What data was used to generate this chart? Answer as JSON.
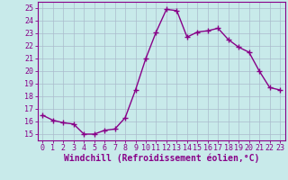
{
  "x": [
    0,
    1,
    2,
    3,
    4,
    5,
    6,
    7,
    8,
    9,
    10,
    11,
    12,
    13,
    14,
    15,
    16,
    17,
    18,
    19,
    20,
    21,
    22,
    23
  ],
  "y": [
    16.5,
    16.1,
    15.9,
    15.8,
    15.0,
    15.0,
    15.3,
    15.4,
    16.3,
    18.5,
    21.0,
    23.1,
    24.9,
    24.8,
    22.7,
    23.1,
    23.2,
    23.4,
    22.5,
    21.9,
    21.5,
    20.0,
    18.7,
    18.5
  ],
  "line_color": "#880088",
  "marker": "+",
  "marker_size": 4,
  "linewidth": 1.0,
  "xlabel": "Windchill (Refroidissement éolien,°C)",
  "xlim": [
    -0.5,
    23.5
  ],
  "ylim": [
    14.5,
    25.5
  ],
  "yticks": [
    15,
    16,
    17,
    18,
    19,
    20,
    21,
    22,
    23,
    24,
    25
  ],
  "xticks": [
    0,
    1,
    2,
    3,
    4,
    5,
    6,
    7,
    8,
    9,
    10,
    11,
    12,
    13,
    14,
    15,
    16,
    17,
    18,
    19,
    20,
    21,
    22,
    23
  ],
  "background_color": "#c8eaea",
  "grid_color": "#aabbcc",
  "xlabel_fontsize": 7,
  "xlabel_color": "#880088",
  "tick_color": "#880088",
  "tick_fontsize": 6,
  "axis_color": "#880088"
}
